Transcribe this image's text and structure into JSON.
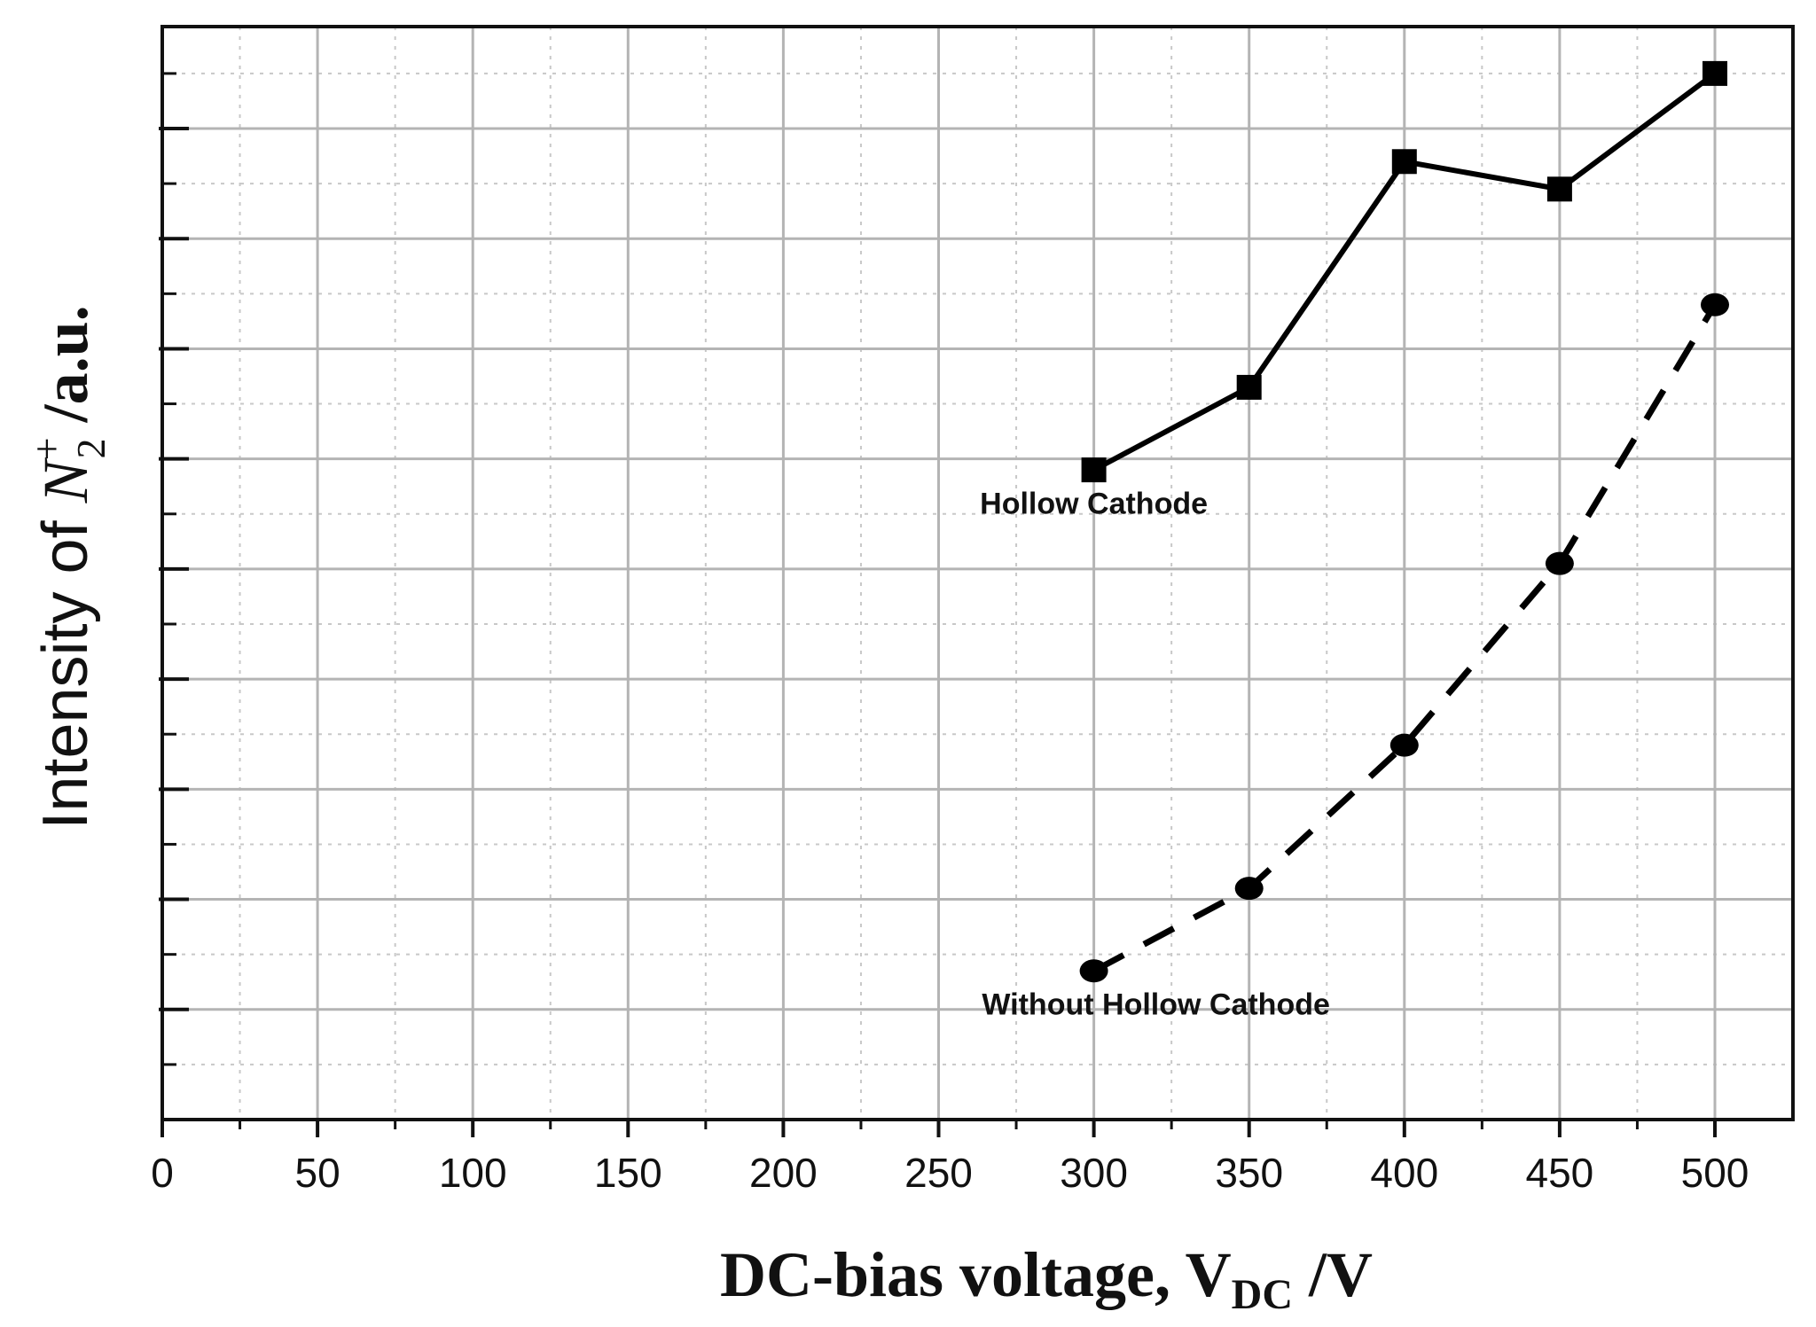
{
  "chart_data": {
    "type": "line",
    "x_axis": {
      "label_main": "DC-bias voltage, V",
      "label_sub": "DC",
      "label_unit": " /V",
      "xlim": [
        0,
        525
      ],
      "ticks": [
        0,
        50,
        100,
        150,
        200,
        250,
        300,
        350,
        400,
        450,
        500
      ],
      "tick_labels": [
        "0",
        "50",
        "100",
        "150",
        "200",
        "250",
        "300",
        "350",
        "400",
        "450",
        "500"
      ],
      "minor_step": 25
    },
    "y_axis": {
      "label_main": "Intensity of ",
      "label_symbol": "N",
      "label_sub": "2",
      "label_sup": "+",
      "label_unit": " /a.u.",
      "ylim": [
        0,
        10
      ],
      "major_step": 1,
      "tick_labels_shown": false
    },
    "grid": true,
    "series": [
      {
        "marker": "square",
        "line_style": "solid",
        "color": "#000000",
        "x": [
          300,
          350,
          400,
          450,
          500
        ],
        "y": [
          5.9,
          6.65,
          8.7,
          8.45,
          9.5
        ]
      },
      {
        "marker": "circle",
        "line_style": "dashed",
        "color": "#000000",
        "x": [
          300,
          350,
          400,
          450,
          500
        ],
        "y": [
          1.35,
          2.1,
          3.4,
          5.05,
          7.4
        ]
      }
    ],
    "annotations": [
      {
        "text": "Hollow Cathode",
        "x": 300,
        "y": 5.6
      },
      {
        "text": "Without Hollow Cathode",
        "x": 320,
        "y": 1.05
      }
    ]
  }
}
